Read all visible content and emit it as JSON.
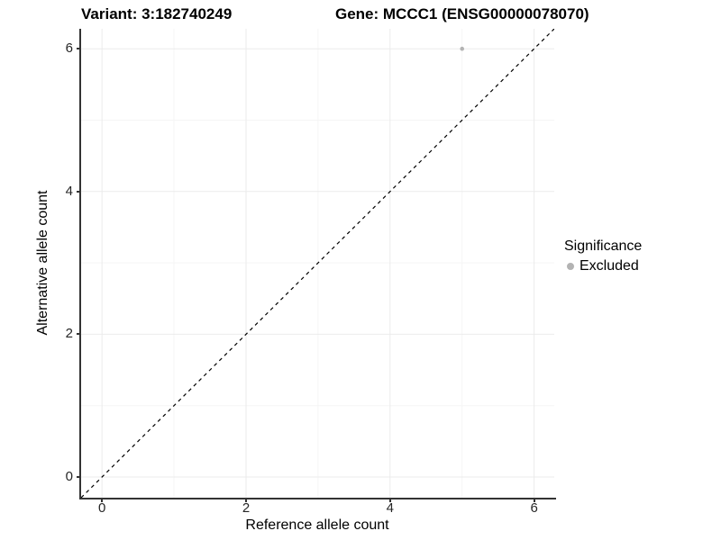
{
  "header": {
    "title_left": "Variant: 3:182740249",
    "title_right": "Gene: MCCC1 (ENSG00000078070)"
  },
  "chart_data": {
    "type": "scatter",
    "title": "",
    "xlabel": "Reference allele count",
    "ylabel": "Alternative allele count",
    "xlim": [
      -0.29,
      6.28
    ],
    "ylim": [
      -0.29,
      6.28
    ],
    "x_ticks": [
      0,
      2,
      4,
      6
    ],
    "y_ticks": [
      0,
      2,
      4,
      6
    ],
    "x_minor_ticks": [
      1,
      3,
      5
    ],
    "y_minor_ticks": [
      1,
      3,
      5
    ],
    "grid": "major+minor",
    "legend_position": "right",
    "series": [
      {
        "name": "Excluded",
        "color": "#b3b3b3",
        "points": [
          {
            "x": 5,
            "y": 6
          }
        ]
      }
    ],
    "reference_line": {
      "kind": "identity",
      "x1": -0.29,
      "y1": -0.29,
      "x2": 6.28,
      "y2": 6.28,
      "style": "dashed",
      "color": "#000000"
    }
  },
  "legend": {
    "title": "Significance",
    "items": [
      {
        "label": "Excluded",
        "color": "#b3b3b3"
      }
    ]
  },
  "colors": {
    "axis_line": "#333333",
    "tick_label": "#262626",
    "grid_major": "#ebebeb",
    "grid_minor": "#f5f5f5",
    "background": "#ffffff"
  }
}
